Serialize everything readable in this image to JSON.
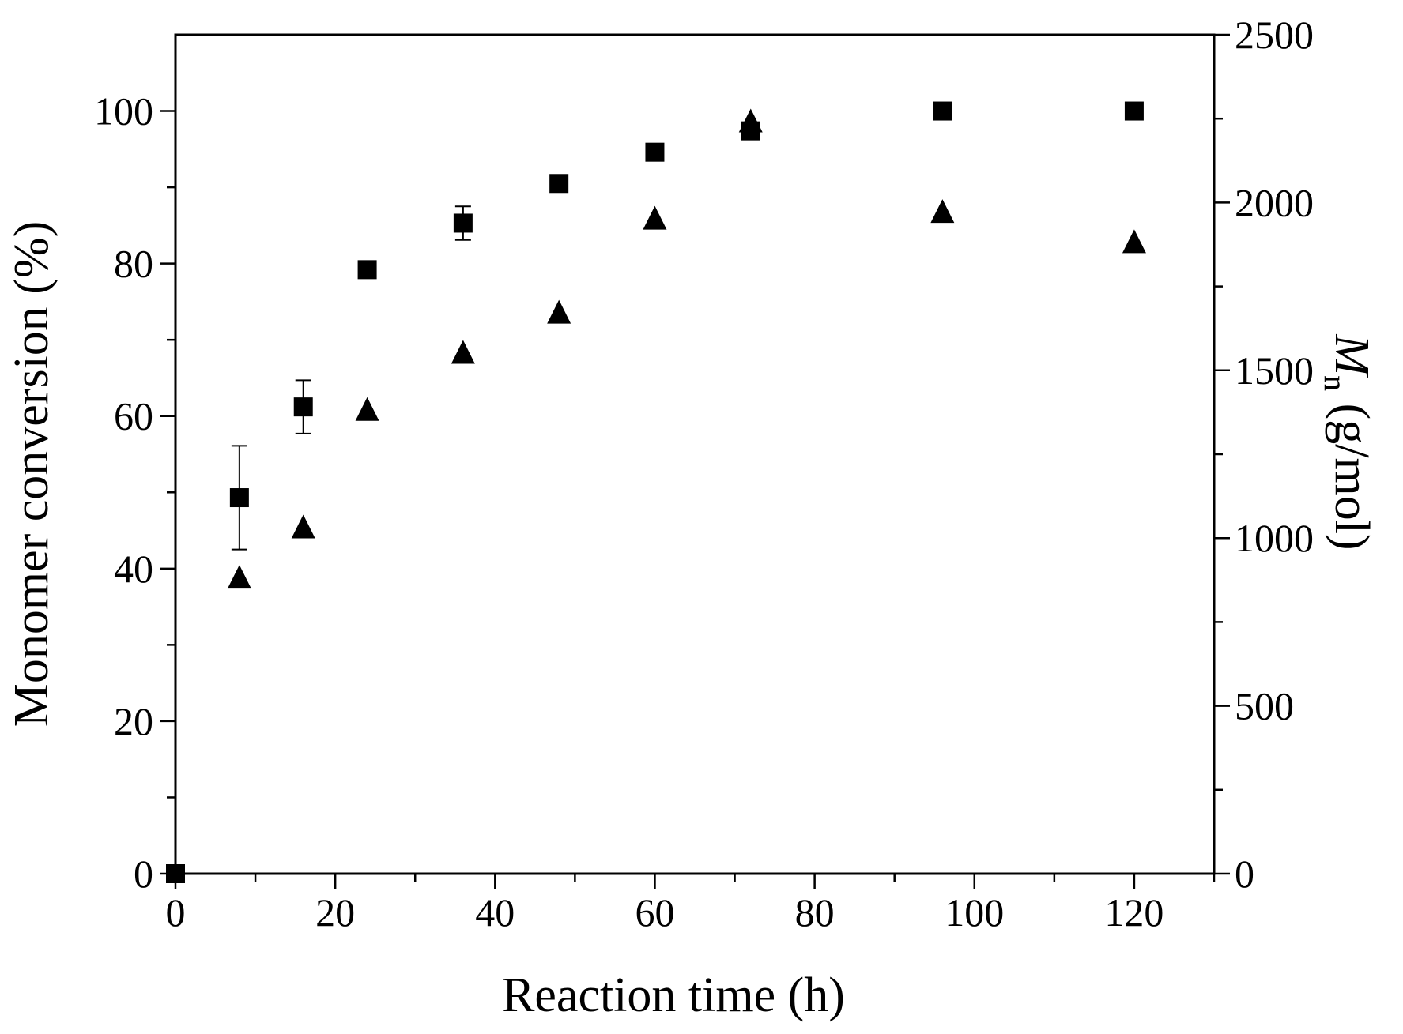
{
  "chart_data": {
    "type": "scatter",
    "title": "",
    "xlabel": "Reaction time (h)",
    "ylabel": "Monomer conversion (%)",
    "y2label_main": "M",
    "y2label_sub": "n",
    "y2label_rest": " (g/mol)",
    "xlim": [
      0,
      130
    ],
    "ylim": [
      0,
      110
    ],
    "y2lim": [
      0,
      2500
    ],
    "xticks": [
      0,
      20,
      40,
      60,
      80,
      100,
      120
    ],
    "xticks_minor": [
      10,
      30,
      50,
      70,
      90,
      110,
      130
    ],
    "yticks": [
      0,
      20,
      40,
      60,
      80,
      100
    ],
    "yticks_minor": [
      10,
      30,
      50,
      70,
      90
    ],
    "y2ticks": [
      0,
      500,
      1000,
      1500,
      2000,
      2500
    ],
    "y2ticks_minor": [
      250,
      750,
      1250,
      1750,
      2250
    ],
    "grid": false,
    "legend": "none",
    "color": "#000000",
    "series": [
      {
        "name": "Monomer conversion",
        "axis": "left",
        "marker": "square",
        "x": [
          0,
          8,
          16,
          24,
          36,
          48,
          60,
          72,
          96,
          120
        ],
        "y": [
          0,
          49.3,
          61.2,
          79.2,
          85.3,
          90.5,
          94.6,
          97.4,
          100,
          100
        ],
        "err": [
          0,
          6.8,
          3.5,
          0,
          2.2,
          0,
          0,
          0,
          0,
          0
        ]
      },
      {
        "name": "Mn",
        "axis": "right",
        "marker": "triangle",
        "x": [
          8,
          16,
          24,
          36,
          48,
          60,
          72,
          96,
          120
        ],
        "y": [
          880,
          1030,
          1380,
          1550,
          1670,
          1950,
          2240,
          1970,
          1880
        ]
      }
    ]
  }
}
